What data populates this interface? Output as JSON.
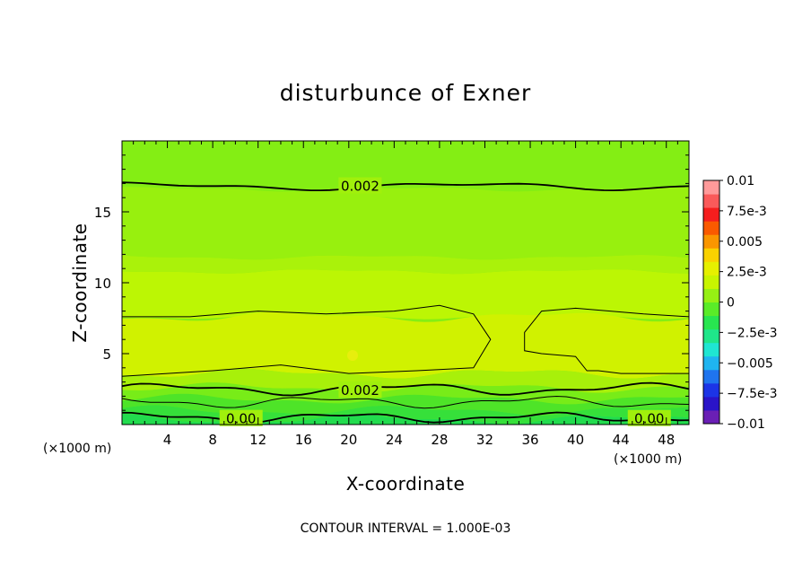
{
  "chart_data": {
    "type": "heatmap",
    "title": "disturbunce of Exner",
    "xlabel": "X-coordinate",
    "ylabel": "Z-coordinate",
    "x_unit_left": "(×1000 m)",
    "x_unit_right": "(×1000 m)",
    "xlim": [
      0,
      50
    ],
    "ylim": [
      0,
      20
    ],
    "x_ticks": [
      "4",
      "8",
      "12",
      "16",
      "20",
      "24",
      "28",
      "32",
      "36",
      "40",
      "44",
      "48"
    ],
    "y_ticks": [
      "5",
      "10",
      "15"
    ],
    "footer": "CONTOUR INTERVAL = 1.000E-03",
    "contour_interval": 0.001,
    "colorbar": {
      "range": [
        -0.01,
        0.01
      ],
      "ticks": [
        "0.01",
        "7.5e-3",
        "0.005",
        "2.5e-3",
        "0",
        "−2.5e-3",
        "−0.005",
        "−7.5e-3",
        "−0.01"
      ],
      "colors": [
        "#6a1fb5",
        "#2a14c8",
        "#1c34e6",
        "#1f74ee",
        "#1fb4f0",
        "#1fe6d2",
        "#1fe68a",
        "#28e650",
        "#5aec28",
        "#96f014",
        "#c8f500",
        "#e6f000",
        "#fad200",
        "#fa9600",
        "#fa5a00",
        "#f51e1e",
        "#fa5a5a",
        "#ff9a9a"
      ]
    },
    "contour_labels": [
      {
        "text": "0.002",
        "x": 21,
        "z": 16.8
      },
      {
        "text": "0.002",
        "x": 21,
        "z": 2.4
      },
      {
        "text": "0.00",
        "x": 10.5,
        "z": 0.4
      },
      {
        "text": "0.00",
        "x": 46.5,
        "z": 0.4
      }
    ],
    "bands": [
      {
        "z0": 16.6,
        "z1": 20,
        "value": 0.0017,
        "color": "#84ee14"
      },
      {
        "z0": 11.8,
        "z1": 16.6,
        "value": 0.0022,
        "color": "#98f00e"
      },
      {
        "z0": 10.8,
        "z1": 11.8,
        "value": 0.0026,
        "color": "#aaf20a"
      },
      {
        "z0": 7.6,
        "z1": 10.8,
        "value": 0.003,
        "color": "#bcf604"
      },
      {
        "z0": 3.6,
        "z1": 7.6,
        "value": 0.0033,
        "color": "#d0f200"
      },
      {
        "z0": 2.6,
        "z1": 3.6,
        "value": 0.0026,
        "color": "#a8f00a"
      },
      {
        "z0": 1.8,
        "z1": 2.6,
        "value": 0.0018,
        "color": "#78ec18"
      },
      {
        "z0": 1.0,
        "z1": 1.8,
        "value": 0.001,
        "color": "#4ee428"
      },
      {
        "z0": 0.4,
        "z1": 1.0,
        "value": 0.0004,
        "color": "#36e03a"
      },
      {
        "z0": 0,
        "z1": 0.4,
        "value": -0.0002,
        "color": "#22dc4e"
      }
    ]
  }
}
